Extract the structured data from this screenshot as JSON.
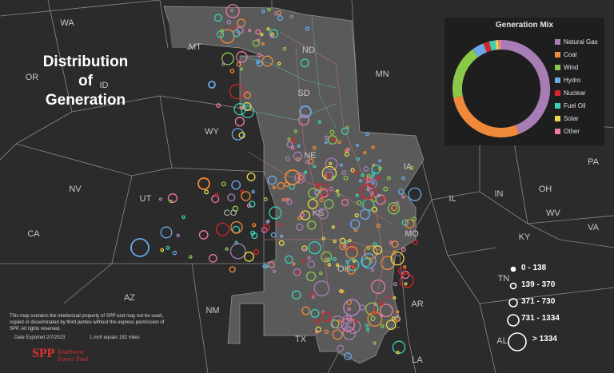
{
  "map": {
    "title_lines": [
      "Distribution",
      "of",
      "Generation"
    ],
    "state_labels": [
      {
        "code": "WA"
      },
      {
        "code": "OR"
      },
      {
        "code": "ID"
      },
      {
        "code": "MT"
      },
      {
        "code": "ND"
      },
      {
        "code": "MN"
      },
      {
        "code": "SD"
      },
      {
        "code": "WY"
      },
      {
        "code": "NV"
      },
      {
        "code": "UT"
      },
      {
        "code": "CA"
      },
      {
        "code": "CO"
      },
      {
        "code": "NE"
      },
      {
        "code": "IA"
      },
      {
        "code": "KS"
      },
      {
        "code": "MO"
      },
      {
        "code": "IL"
      },
      {
        "code": "IN"
      },
      {
        "code": "OH"
      },
      {
        "code": "PA"
      },
      {
        "code": "WV"
      },
      {
        "code": "VA"
      },
      {
        "code": "KY"
      },
      {
        "code": "TN"
      },
      {
        "code": "AZ"
      },
      {
        "code": "NM"
      },
      {
        "code": "OK"
      },
      {
        "code": "AR"
      },
      {
        "code": "TX"
      },
      {
        "code": "LA"
      },
      {
        "code": "AL"
      }
    ],
    "colors": {
      "background": "#2b2b2b",
      "state_fill": "#3a3a3a",
      "spp_fill": "#5a5a5a",
      "borders": "#8a8a8a"
    }
  },
  "generation_mix": {
    "title": "Generation Mix",
    "items": [
      {
        "label": "Natural Gas",
        "color": "#a87db5",
        "share": 0.44
      },
      {
        "label": "Coal",
        "color": "#f08a3a",
        "share": 0.28
      },
      {
        "label": "Wind",
        "color": "#8ac84a",
        "share": 0.18
      },
      {
        "label": "Hydro",
        "color": "#6aa8e8",
        "share": 0.04
      },
      {
        "label": "Nuclear",
        "color": "#d4252b",
        "share": 0.02
      },
      {
        "label": "Fuel Oil",
        "color": "#3ad0b8",
        "share": 0.02
      },
      {
        "label": "Solar",
        "color": "#e8d84a",
        "share": 0.01
      },
      {
        "label": "Other",
        "color": "#f07aa0",
        "share": 0.01
      }
    ]
  },
  "size_legend": {
    "items": [
      {
        "label": "0 - 138"
      },
      {
        "label": "139 - 370"
      },
      {
        "label": "371 - 730"
      },
      {
        "label": "731 - 1334"
      },
      {
        "label": "> 1334"
      }
    ]
  },
  "footer": {
    "disclaimer": "This map contains the intellectual property of SPP and may not be used, copied or disseminated by third parties without the express permission of SPP. All rights reserved.",
    "date_exported": "Date Exported 2/7/2023",
    "scale": "1 inch equals 182 miles",
    "logo_mark": "SPP",
    "logo_name_1": "Southwest",
    "logo_name_2": "Power Pool"
  }
}
